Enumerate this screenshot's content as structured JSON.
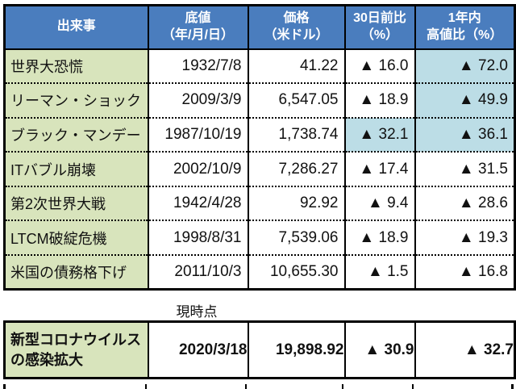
{
  "colors": {
    "header_bg": "#4a7dbe",
    "header_text": "#ffffff",
    "event_col_bg": "#d8e4bc",
    "highlight_bg": "#bcdde6",
    "border": "#000000",
    "body_text": "#111111"
  },
  "ui": {
    "headers": [
      {
        "line1": "出来事",
        "line2": ""
      },
      {
        "line1": "底値",
        "line2": "（年/月/日）"
      },
      {
        "line1": "価格",
        "line2": "（米ドル）"
      },
      {
        "line1": "30日前比",
        "line2": "（%）"
      },
      {
        "line1": "1年内",
        "line2": "高値比（%）"
      }
    ],
    "rows": [
      {
        "event": "世界大恐慌",
        "date": "1932/7/8",
        "price": "41.22",
        "d30": "▲ 16.0",
        "y1": "▲ 72.0"
      },
      {
        "event": "リーマン・ショック",
        "date": "2009/3/9",
        "price": "6,547.05",
        "d30": "▲ 18.9",
        "y1": "▲ 49.9"
      },
      {
        "event": "ブラック・マンデー",
        "date": "1987/10/19",
        "price": "1,738.74",
        "d30": "▲ 32.1",
        "y1": "▲ 36.1"
      },
      {
        "event": "ITバブル崩壊",
        "date": "2002/10/9",
        "price": "7,286.27",
        "d30": "▲ 17.4",
        "y1": "▲ 31.5"
      },
      {
        "event": "第2次世界大戦",
        "date": "1942/4/28",
        "price": "92.92",
        "d30": "▲ 9.4",
        "y1": "▲ 28.6"
      },
      {
        "event": "LTCM破綻危機",
        "date": "1998/8/31",
        "price": "7,539.06",
        "d30": "▲ 18.9",
        "y1": "▲ 19.3"
      },
      {
        "event": "米国の債務格下げ",
        "date": "2011/10/3",
        "price": "10,655.30",
        "d30": "▲ 1.5",
        "y1": "▲ 16.8"
      }
    ],
    "current": {
      "label": "現時点",
      "event_line1": "新型コロナウイルス",
      "event_line2": "の感染拡大",
      "date": "2020/3/18",
      "price": "19,898.92",
      "d30": "▲ 30.9",
      "y1": "▲ 32.7"
    }
  },
  "chart_data": {
    "type": "table",
    "columns": [
      "出来事",
      "底値（年/月/日）",
      "価格（米ドル）",
      "30日前比（%）",
      "1年内高値比（%）"
    ],
    "rows": [
      [
        "世界大恐慌",
        "1932/7/8",
        41.22,
        -16.0,
        -72.0
      ],
      [
        "リーマン・ショック",
        "2009/3/9",
        6547.05,
        -18.9,
        -49.9
      ],
      [
        "ブラック・マンデー",
        "1987/10/19",
        1738.74,
        -32.1,
        -36.1
      ],
      [
        "ITバブル崩壊",
        "2002/10/9",
        7286.27,
        -17.4,
        -31.5
      ],
      [
        "第2次世界大戦",
        "1942/4/28",
        92.92,
        -9.4,
        -28.6
      ],
      [
        "LTCM破綻危機",
        "1998/8/31",
        7539.06,
        -18.9,
        -19.3
      ],
      [
        "米国の債務格下げ",
        "2011/10/3",
        10655.3,
        -1.5,
        -16.8
      ]
    ],
    "current_row": [
      "新型コロナウイルスの感染拡大（現時点）",
      "2020/3/18",
      19898.92,
      -30.9,
      -32.7
    ],
    "highlighted_cells": [
      {
        "row": 0,
        "column": "1年内高値比（%）"
      },
      {
        "row": 1,
        "column": "1年内高値比（%）"
      },
      {
        "row": 2,
        "column": "30日前比（%）"
      },
      {
        "row": 2,
        "column": "1年内高値比（%）"
      }
    ],
    "notes": "▲ = decline (negative change)"
  }
}
